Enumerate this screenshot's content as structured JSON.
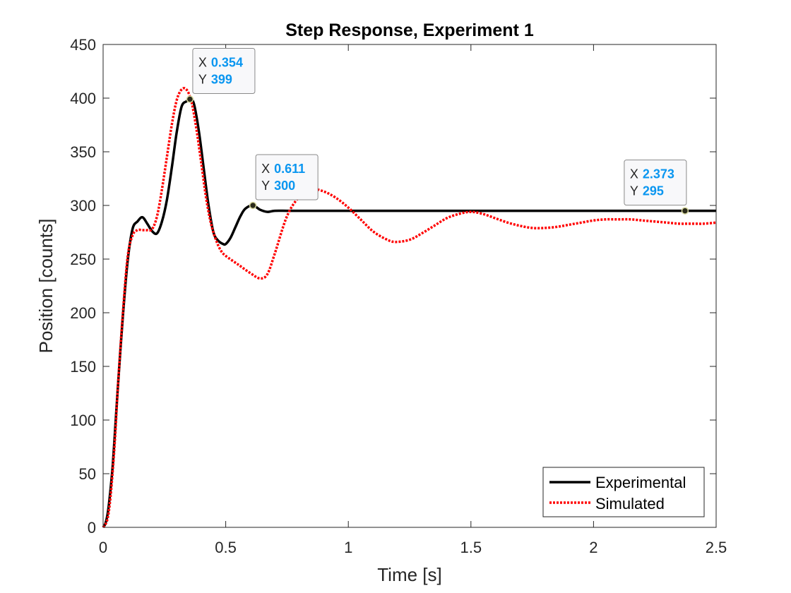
{
  "chart_data": {
    "type": "line",
    "title": "Step Response, Experiment 1",
    "xlabel": "Time [s]",
    "ylabel": "Position [counts]",
    "xlim": [
      0,
      2.5
    ],
    "ylim": [
      0,
      450
    ],
    "xticks": [
      0,
      0.5,
      1,
      1.5,
      2,
      2.5
    ],
    "xtick_labels": [
      "0",
      "0.5",
      "1",
      "1.5",
      "2",
      "2.5"
    ],
    "yticks": [
      0,
      50,
      100,
      150,
      200,
      250,
      300,
      350,
      400,
      450
    ],
    "ytick_labels": [
      "0",
      "50",
      "100",
      "150",
      "200",
      "250",
      "300",
      "350",
      "400",
      "450"
    ],
    "grid": false,
    "legend_position": "bottom-right",
    "series": [
      {
        "name": "Experimental",
        "color": "#000000",
        "style": "solid",
        "x": [
          0,
          0.01,
          0.02,
          0.03,
          0.04,
          0.05,
          0.06,
          0.08,
          0.1,
          0.12,
          0.14,
          0.16,
          0.18,
          0.2,
          0.22,
          0.24,
          0.26,
          0.28,
          0.3,
          0.32,
          0.34,
          0.354,
          0.37,
          0.39,
          0.41,
          0.43,
          0.45,
          0.47,
          0.49,
          0.5,
          0.52,
          0.54,
          0.56,
          0.58,
          0.611,
          0.64,
          0.67,
          0.7,
          0.75,
          0.8,
          1.0,
          1.5,
          2.0,
          2.373,
          2.5
        ],
        "y": [
          0,
          4,
          15,
          35,
          60,
          95,
          130,
          195,
          248,
          278,
          285,
          289,
          283,
          276,
          274,
          285,
          305,
          335,
          368,
          392,
          397,
          399,
          395,
          370,
          335,
          300,
          275,
          267,
          264,
          264,
          270,
          280,
          290,
          297,
          300,
          296,
          294,
          295,
          295,
          295,
          295,
          295,
          295,
          295,
          295
        ]
      },
      {
        "name": "Simulated",
        "color": "#ff0000",
        "style": "dotted",
        "x": [
          0,
          0.01,
          0.02,
          0.03,
          0.04,
          0.05,
          0.06,
          0.08,
          0.1,
          0.12,
          0.14,
          0.16,
          0.18,
          0.2,
          0.22,
          0.24,
          0.26,
          0.28,
          0.3,
          0.32,
          0.34,
          0.36,
          0.38,
          0.4,
          0.42,
          0.44,
          0.46,
          0.48,
          0.5,
          0.55,
          0.6,
          0.64,
          0.67,
          0.7,
          0.75,
          0.8,
          0.85,
          0.9,
          0.95,
          1.0,
          1.05,
          1.1,
          1.15,
          1.19,
          1.25,
          1.3,
          1.35,
          1.4,
          1.45,
          1.5,
          1.55,
          1.6,
          1.65,
          1.7,
          1.75,
          1.8,
          1.85,
          1.9,
          1.95,
          2.0,
          2.05,
          2.1,
          2.15,
          2.2,
          2.25,
          2.3,
          2.35,
          2.4,
          2.45,
          2.5
        ],
        "y": [
          0,
          3,
          10,
          28,
          55,
          88,
          130,
          198,
          252,
          272,
          277,
          277,
          277,
          278,
          290,
          315,
          345,
          375,
          398,
          408,
          408,
          397,
          372,
          340,
          307,
          283,
          268,
          258,
          253,
          245,
          237,
          232,
          236,
          255,
          290,
          308,
          315,
          313,
          307,
          298,
          287,
          276,
          269,
          266,
          268,
          274,
          281,
          288,
          292,
          294,
          292,
          288,
          284,
          281,
          279,
          279,
          280,
          282,
          284,
          286,
          287,
          287,
          287,
          286,
          285,
          284,
          283,
          283,
          283,
          284
        ]
      }
    ],
    "datatips": [
      {
        "x_key": "X",
        "x_value": "0.354",
        "y_key": "Y",
        "y_value": "399",
        "x": 0.354,
        "y": 399
      },
      {
        "x_key": "X",
        "x_value": "0.611",
        "y_key": "Y",
        "y_value": "300",
        "x": 0.611,
        "y": 300
      },
      {
        "x_key": "X",
        "x_value": "2.373",
        "y_key": "Y",
        "y_value": "295",
        "x": 2.373,
        "y": 295
      }
    ],
    "datatip_value_color": "#0a96f0"
  }
}
